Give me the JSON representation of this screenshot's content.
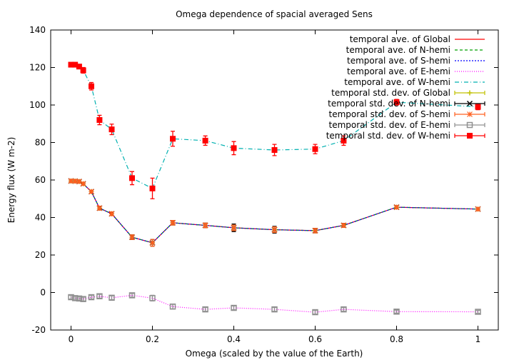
{
  "chart_data": {
    "type": "line",
    "title": "Omega dependence of spacial averaged Sens",
    "xlabel": "Omega (scaled by the value of the Earth)",
    "ylabel": "Energy flux (W m-2)",
    "xlim": [
      -0.05,
      1.05
    ],
    "ylim": [
      -20,
      140
    ],
    "xticks": [
      0,
      0.2,
      0.4,
      0.6,
      0.8,
      1
    ],
    "xtick_labels": [
      "0",
      "0.2",
      "0.4",
      "0.6",
      "0.8",
      "1"
    ],
    "yticks": [
      -20,
      0,
      20,
      40,
      60,
      80,
      100,
      120,
      140
    ],
    "ytick_labels": [
      "-20",
      "0",
      "20",
      "40",
      "60",
      "80",
      "100",
      "120",
      "140"
    ],
    "grid": false,
    "legend_position": "top-right",
    "x": [
      0,
      0.01,
      0.02,
      0.03,
      0.05,
      0.07,
      0.1,
      0.15,
      0.2,
      0.25,
      0.33,
      0.4,
      0.5,
      0.6,
      0.67,
      0.8,
      1
    ],
    "series": [
      {
        "name": "temporal ave. of Global",
        "kind": "line",
        "color": "#ff0000",
        "dash": "",
        "values": [
          59.5,
          59.4,
          59.2,
          58.0,
          53.8,
          45.0,
          42.0,
          29.5,
          26.5,
          37.2,
          35.8,
          34.5,
          33.5,
          33.0,
          35.8,
          45.5,
          44.5
        ]
      },
      {
        "name": "temporal ave. of N-hemi",
        "kind": "line",
        "color": "#00a000",
        "dash": "4,3",
        "values": [
          59.5,
          59.4,
          59.2,
          58.0,
          53.8,
          45.0,
          42.0,
          29.5,
          26.5,
          37.2,
          35.8,
          34.5,
          33.5,
          33.0,
          35.8,
          45.5,
          44.5
        ]
      },
      {
        "name": "temporal ave. of S-hemi",
        "kind": "line",
        "color": "#0000ff",
        "dash": "2,2",
        "values": [
          59.5,
          59.4,
          59.2,
          58.0,
          53.8,
          45.0,
          42.0,
          29.5,
          26.5,
          37.2,
          35.8,
          34.5,
          33.5,
          33.0,
          35.8,
          45.5,
          44.5
        ]
      },
      {
        "name": "temporal ave. of E-hemi",
        "kind": "line",
        "color": "#ff00ff",
        "dash": "1,2",
        "values": [
          -2.5,
          -3.0,
          -3.2,
          -3.5,
          -2.5,
          -2.0,
          -2.8,
          -1.5,
          -3.0,
          -7.5,
          -9.0,
          -8.2,
          -9.0,
          -10.5,
          -9.0,
          -10.2,
          -10.3
        ]
      },
      {
        "name": "temporal ave. of W-hemi",
        "kind": "line",
        "color": "#00b0b0",
        "dash": "6,3,1,3",
        "values": [
          121.5,
          121.5,
          120.5,
          118.5,
          110.0,
          92.0,
          87.0,
          61.0,
          55.5,
          82.0,
          81.0,
          77.0,
          76.0,
          76.5,
          81.0,
          101.5,
          99.0
        ]
      },
      {
        "name": "temporal std. dev. of Global",
        "kind": "errorbars",
        "color": "#c0c000",
        "marker": "plus",
        "values": [
          59.5,
          59.4,
          59.2,
          58.0,
          53.8,
          45.0,
          42.0,
          29.5,
          26.5,
          37.2,
          35.8,
          34.5,
          33.5,
          33.0,
          35.8,
          45.5,
          44.5
        ],
        "errors": [
          0.8,
          0.8,
          0.8,
          0.8,
          0.8,
          1.0,
          1.0,
          1.2,
          1.8,
          1.2,
          1.2,
          1.5,
          1.5,
          1.2,
          1.0,
          0.8,
          0.8
        ]
      },
      {
        "name": "temporal std. dev. of N-hemi",
        "kind": "errorbars",
        "color": "#000000",
        "marker": "cross",
        "values": [
          59.5,
          59.4,
          59.2,
          58.0,
          53.8,
          45.0,
          42.0,
          29.5,
          26.5,
          37.2,
          35.8,
          34.5,
          33.5,
          33.0,
          35.8,
          45.5,
          44.5
        ],
        "errors": [
          0.8,
          0.8,
          0.8,
          0.8,
          0.8,
          1.0,
          1.0,
          1.2,
          1.8,
          1.2,
          1.2,
          2.0,
          1.8,
          1.2,
          1.0,
          0.8,
          0.8
        ]
      },
      {
        "name": "temporal std. dev. of S-hemi",
        "kind": "errorbars",
        "color": "#ff6020",
        "marker": "star",
        "values": [
          59.5,
          59.4,
          59.2,
          58.0,
          53.8,
          45.0,
          42.0,
          29.5,
          26.5,
          37.2,
          35.8,
          34.5,
          33.5,
          33.0,
          35.8,
          45.5,
          44.5
        ],
        "errors": [
          0.8,
          0.8,
          0.8,
          0.8,
          0.8,
          1.0,
          1.0,
          1.2,
          1.8,
          1.2,
          1.2,
          1.5,
          1.5,
          1.2,
          1.0,
          0.8,
          0.8
        ]
      },
      {
        "name": "temporal std. dev. of E-hemi",
        "kind": "errorbars",
        "color": "#909090",
        "marker": "square-open",
        "values": [
          -2.5,
          -3.0,
          -3.2,
          -3.5,
          -2.5,
          -2.0,
          -2.8,
          -1.5,
          -3.0,
          -7.5,
          -9.0,
          -8.2,
          -9.0,
          -10.5,
          -9.0,
          -10.2,
          -10.3
        ],
        "errors": [
          1.0,
          1.0,
          1.0,
          1.0,
          1.0,
          1.0,
          1.0,
          1.0,
          1.5,
          1.2,
          1.0,
          1.0,
          1.0,
          1.0,
          1.0,
          0.8,
          0.8
        ]
      },
      {
        "name": "temporal std. dev. of W-hemi",
        "kind": "errorbars",
        "color": "#ff0000",
        "marker": "square-filled",
        "values": [
          121.5,
          121.5,
          120.5,
          118.5,
          110.0,
          92.0,
          87.0,
          61.0,
          55.5,
          82.0,
          81.0,
          77.0,
          76.0,
          76.5,
          81.0,
          101.5,
          99.0
        ],
        "errors": [
          1.0,
          1.0,
          1.0,
          1.5,
          2.0,
          2.5,
          2.8,
          3.5,
          5.5,
          4.0,
          2.5,
          3.5,
          3.0,
          2.5,
          2.5,
          1.5,
          1.5
        ]
      }
    ]
  }
}
